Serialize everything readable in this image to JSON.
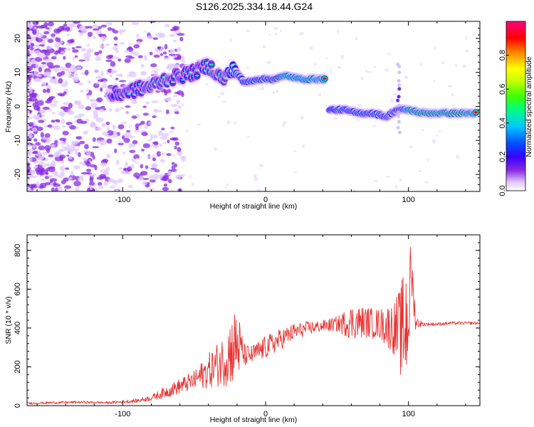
{
  "figure": {
    "title": "S126.2025.334.18.44.G24"
  },
  "colors": {
    "snr_line": "#e83232",
    "axis": "#000000",
    "background": "#ffffff"
  },
  "chart_data": [
    {
      "type": "heatmap",
      "title": "",
      "xlabel": "Height of straight line (km)",
      "ylabel": "Frequency (Hz)",
      "xlim": [
        -167,
        150
      ],
      "ylim": [
        -25,
        25
      ],
      "xticks": [
        -100,
        0,
        100
      ],
      "yticks": [
        -20,
        -10,
        0,
        10,
        20
      ],
      "xtick_labels": [
        "-100",
        "0",
        "100"
      ],
      "ytick_labels": [
        "-20",
        "-10",
        "0",
        "10",
        "20"
      ],
      "colorbar": {
        "label": "Normalized spectral amplitude",
        "range": [
          0,
          1
        ],
        "ticks": [
          0.0,
          0.2,
          0.4,
          0.6,
          0.8
        ],
        "tick_labels": [
          "0.0",
          "0.2",
          "0.4",
          "0.6",
          "0.8"
        ],
        "colormap": [
          "#ffffff",
          "#e0c8ff",
          "#8a2be2",
          "#3a00ff",
          "#0050ff",
          "#00c8ff",
          "#00ff80",
          "#40ff00",
          "#c8ff00",
          "#ffff00",
          "#ff8000",
          "#ff0000",
          "#ff0080"
        ]
      },
      "ridge": [
        {
          "x": -110,
          "y": 3,
          "amp": 0.35
        },
        {
          "x": -100,
          "y": 4,
          "amp": 0.4
        },
        {
          "x": -90,
          "y": 5,
          "amp": 0.45
        },
        {
          "x": -80,
          "y": 6,
          "amp": 0.5
        },
        {
          "x": -70,
          "y": 8,
          "amp": 0.5
        },
        {
          "x": -60,
          "y": 9,
          "amp": 0.45
        },
        {
          "x": -50,
          "y": 10,
          "amp": 0.45
        },
        {
          "x": -40,
          "y": 12,
          "amp": 0.5
        },
        {
          "x": -30,
          "y": 8,
          "amp": 0.55
        },
        {
          "x": -22,
          "y": 11,
          "amp": 0.65
        },
        {
          "x": -15,
          "y": 7,
          "amp": 0.75
        },
        {
          "x": -5,
          "y": 8,
          "amp": 0.75
        },
        {
          "x": 5,
          "y": 8,
          "amp": 0.8
        },
        {
          "x": 15,
          "y": 9,
          "amp": 0.85
        },
        {
          "x": 25,
          "y": 8,
          "amp": 0.85
        },
        {
          "x": 35,
          "y": 8,
          "amp": 0.9
        },
        {
          "x": 42,
          "y": 8,
          "amp": 0.9
        },
        {
          "x": 45,
          "y": -1,
          "amp": 0.6
        },
        {
          "x": 55,
          "y": -1,
          "amp": 0.65
        },
        {
          "x": 65,
          "y": -2,
          "amp": 0.7
        },
        {
          "x": 75,
          "y": -2,
          "amp": 0.75
        },
        {
          "x": 85,
          "y": -3,
          "amp": 0.75
        },
        {
          "x": 92,
          "y": -1,
          "amp": 0.6
        },
        {
          "x": 100,
          "y": -1,
          "amp": 0.9
        },
        {
          "x": 110,
          "y": -2,
          "amp": 0.95
        },
        {
          "x": 120,
          "y": -2,
          "amp": 0.95
        },
        {
          "x": 130,
          "y": -2,
          "amp": 0.95
        },
        {
          "x": 140,
          "y": -2,
          "amp": 0.95
        },
        {
          "x": 148,
          "y": -2,
          "amp": 0.95
        }
      ]
    },
    {
      "type": "line",
      "title": "",
      "xlabel": "Height of straight line (km)",
      "ylabel": "SNR (10 * v/v)",
      "xlim": [
        -167,
        150
      ],
      "ylim": [
        0,
        880
      ],
      "xticks": [
        -100,
        0,
        100
      ],
      "yticks": [
        0,
        200,
        400,
        600,
        800
      ],
      "xtick_labels": [
        "-100",
        "0",
        "100"
      ],
      "ytick_labels": [
        "0",
        "200",
        "400",
        "600",
        "800"
      ],
      "series": [
        {
          "name": "SNR",
          "x": [
            -167,
            -150,
            -130,
            -110,
            -90,
            -80,
            -70,
            -60,
            -50,
            -40,
            -30,
            -25,
            -20,
            -15,
            -10,
            0,
            10,
            20,
            30,
            40,
            50,
            60,
            70,
            80,
            90,
            95,
            98,
            100,
            102,
            105,
            110,
            120,
            130,
            140,
            150
          ],
          "y": [
            12,
            15,
            18,
            15,
            25,
            40,
            70,
            100,
            130,
            180,
            230,
            280,
            320,
            260,
            260,
            300,
            340,
            380,
            400,
            410,
            420,
            430,
            430,
            420,
            400,
            380,
            420,
            480,
            700,
            430,
            420,
            420,
            425,
            425,
            425
          ],
          "noise": [
            5,
            6,
            6,
            6,
            10,
            15,
            30,
            40,
            50,
            90,
            130,
            180,
            200,
            60,
            50,
            60,
            55,
            45,
            35,
            30,
            40,
            90,
            80,
            80,
            140,
            250,
            350,
            300,
            150,
            40,
            10,
            8,
            8,
            8,
            8
          ]
        }
      ]
    }
  ]
}
